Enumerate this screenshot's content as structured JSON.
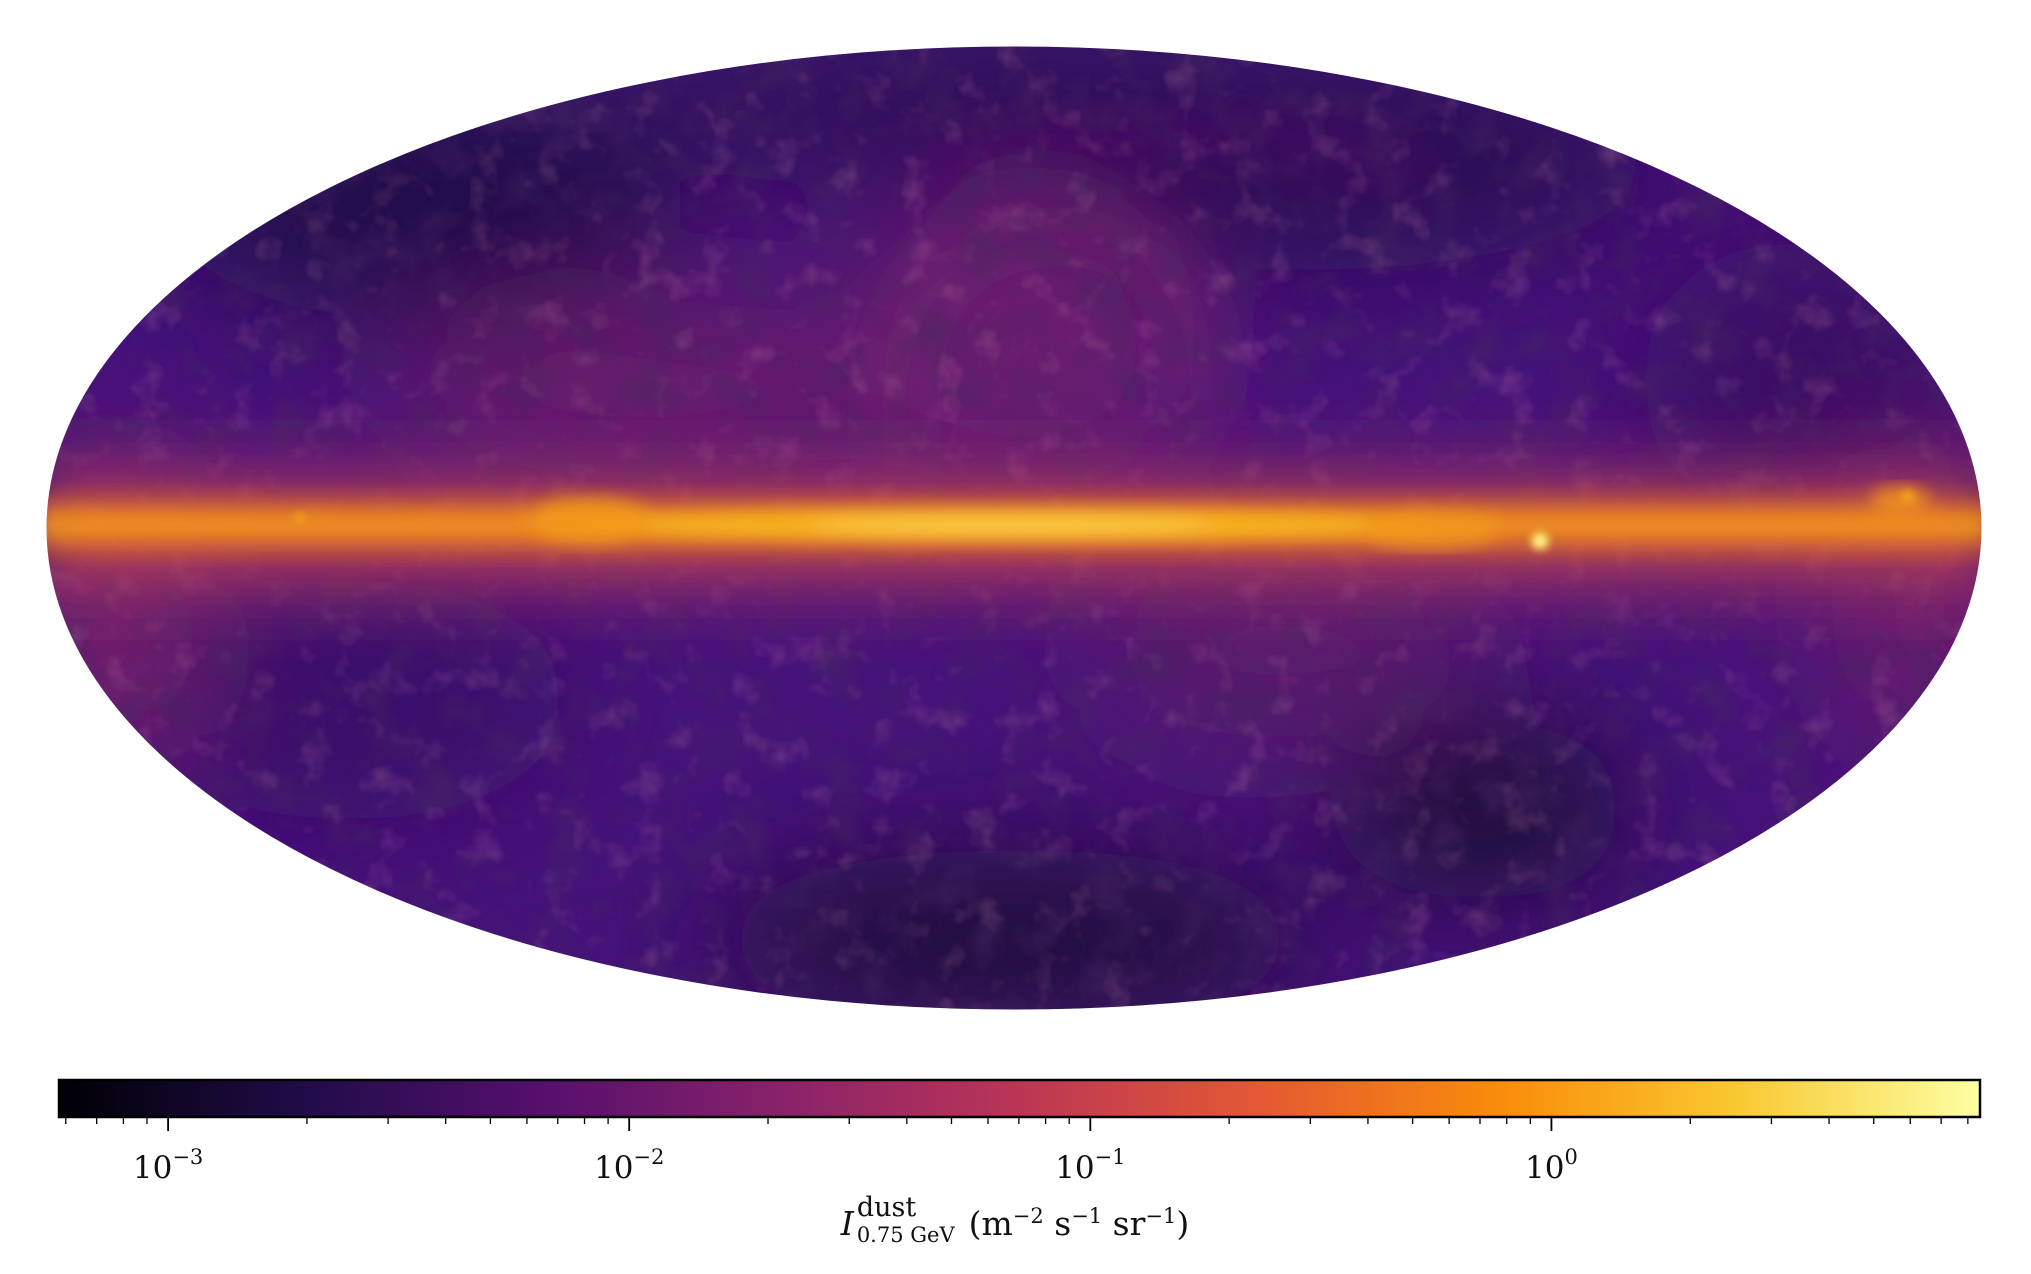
{
  "map": {
    "projection": "mollweide",
    "colormap": "inferno",
    "scale": "log",
    "palette": [
      "#000004",
      "#1f0c48",
      "#550f6d",
      "#88226a",
      "#ba3655",
      "#e35933",
      "#f98c0a",
      "#f9c932",
      "#fcffa4"
    ]
  },
  "colorbar": {
    "range": [
      0.00058,
      8.5
    ],
    "ticks": [
      {
        "base": "10",
        "exp": "−3",
        "value": 0.001
      },
      {
        "base": "10",
        "exp": "−2",
        "value": 0.01
      },
      {
        "base": "10",
        "exp": "−1",
        "value": 0.1
      },
      {
        "base": "10",
        "exp": "0",
        "value": 1
      }
    ],
    "label": {
      "symbol": "I",
      "superscript": "dust",
      "subscript": "0.75 GeV",
      "units_open": "(m",
      "exp_m": "−2",
      "s": " s",
      "exp_s": "−1",
      "sr": " sr",
      "exp_sr": "−1",
      "units_close": ")"
    }
  }
}
